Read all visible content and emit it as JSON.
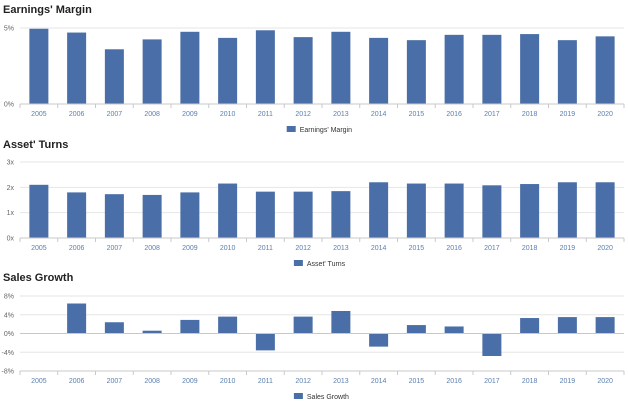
{
  "panels": [
    {
      "title": "Earnings' Margin"
    },
    {
      "title": "Asset' Turns"
    },
    {
      "title": "Sales Growth"
    }
  ],
  "colors": {
    "bar": "#4a6fa8",
    "grid": "#e6e6e6",
    "axis": "#c8c8c8"
  },
  "chart_data": [
    {
      "type": "bar",
      "title": "Earnings' Margin",
      "categories": [
        "2005",
        "2006",
        "2007",
        "2008",
        "2009",
        "2010",
        "2011",
        "2012",
        "2013",
        "2014",
        "2015",
        "2016",
        "2017",
        "2018",
        "2019",
        "2020"
      ],
      "series": [
        {
          "name": "Earnings' Margin",
          "values": [
            4.95,
            4.7,
            3.6,
            4.25,
            4.75,
            4.35,
            4.85,
            4.4,
            4.75,
            4.35,
            4.2,
            4.55,
            4.55,
            4.6,
            4.2,
            4.45
          ]
        }
      ],
      "ylim": [
        0,
        5
      ],
      "yticks": [
        0,
        5
      ],
      "ytick_labels": [
        "0%",
        "5%"
      ],
      "grid": true,
      "legend": "bottom-center"
    },
    {
      "type": "bar",
      "title": "Asset' Turns",
      "categories": [
        "2005",
        "2006",
        "2007",
        "2008",
        "2009",
        "2010",
        "2011",
        "2012",
        "2013",
        "2014",
        "2015",
        "2016",
        "2017",
        "2018",
        "2019",
        "2020"
      ],
      "series": [
        {
          "name": "Asset' Turns",
          "values": [
            2.1,
            1.8,
            1.73,
            1.7,
            1.8,
            2.15,
            1.83,
            1.83,
            1.85,
            2.2,
            2.15,
            2.15,
            2.08,
            2.13,
            2.2,
            2.2
          ]
        }
      ],
      "ylim": [
        0,
        3
      ],
      "yticks": [
        0,
        1,
        2,
        3
      ],
      "ytick_labels": [
        "0x",
        "1x",
        "2x",
        "3x"
      ],
      "grid": true,
      "legend": "bottom-center"
    },
    {
      "type": "bar",
      "title": "Sales Growth",
      "categories": [
        "2005",
        "2006",
        "2007",
        "2008",
        "2009",
        "2010",
        "2011",
        "2012",
        "2013",
        "2014",
        "2015",
        "2016",
        "2017",
        "2018",
        "2019",
        "2020"
      ],
      "series": [
        {
          "name": "Sales Growth",
          "values": [
            null,
            6.4,
            2.4,
            0.6,
            2.9,
            3.6,
            -3.6,
            3.6,
            4.8,
            -2.8,
            1.8,
            1.5,
            -4.8,
            3.3,
            3.5,
            3.5
          ]
        }
      ],
      "ylim": [
        -8,
        8
      ],
      "yticks": [
        -8,
        -4,
        0,
        4,
        8
      ],
      "ytick_labels": [
        "-8%",
        "-4%",
        "0%",
        "4%",
        "8%"
      ],
      "grid": true,
      "legend": "bottom-center"
    }
  ]
}
